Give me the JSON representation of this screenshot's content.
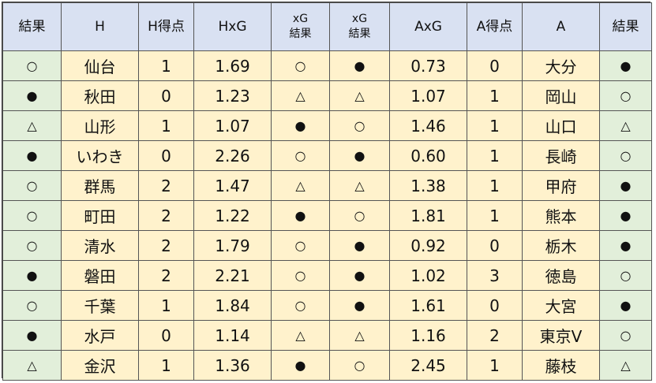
{
  "headers": [
    "結果",
    "H",
    "H得点",
    "HxG",
    "xG\n結果",
    "xG\n結果",
    "AxG",
    "A得点",
    "A",
    "結果"
  ],
  "rows": [
    [
      "○",
      "仙台",
      "1",
      "1.69",
      "○",
      "●",
      "0.73",
      "0",
      "大分",
      "●"
    ],
    [
      "●",
      "秋田",
      "0",
      "1.23",
      "△",
      "△",
      "1.07",
      "1",
      "岡山",
      "○"
    ],
    [
      "△",
      "山形",
      "1",
      "1.07",
      "●",
      "○",
      "1.46",
      "1",
      "山口",
      "△"
    ],
    [
      "●",
      "いわき",
      "0",
      "2.26",
      "○",
      "●",
      "0.60",
      "1",
      "長崎",
      "○"
    ],
    [
      "○",
      "群馬",
      "2",
      "1.47",
      "△",
      "△",
      "1.38",
      "1",
      "甲府",
      "●"
    ],
    [
      "○",
      "町田",
      "2",
      "1.22",
      "●",
      "○",
      "1.81",
      "1",
      "熊本",
      "●"
    ],
    [
      "○",
      "清水",
      "2",
      "1.79",
      "○",
      "●",
      "0.92",
      "0",
      "栃木",
      "●"
    ],
    [
      "●",
      "磐田",
      "2",
      "2.21",
      "○",
      "●",
      "1.02",
      "3",
      "徳島",
      "○"
    ],
    [
      "○",
      "千葉",
      "1",
      "1.84",
      "○",
      "●",
      "1.61",
      "0",
      "大宮",
      "●"
    ],
    [
      "●",
      "水戸",
      "0",
      "1.14",
      "△",
      "△",
      "1.16",
      "2",
      "東京V",
      "○"
    ],
    [
      "△",
      "金沢",
      "1",
      "1.36",
      "●",
      "○",
      "2.45",
      "1",
      "藤枝",
      "△"
    ]
  ],
  "colors": {
    "header_bg": "#d9e1f2",
    "result_bg": "#e2efda",
    "data_bg": "#fff2cc",
    "border": "#555555"
  }
}
